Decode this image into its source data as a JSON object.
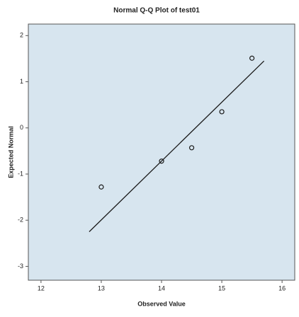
{
  "chart_data": {
    "type": "qq",
    "title": "Normal Q-Q Plot of test01",
    "xlabel": "Observed Value",
    "ylabel": "Expected Normal",
    "x": [
      13,
      14,
      14.5,
      15,
      15.5
    ],
    "values": [
      -1.28,
      -0.72,
      -0.43,
      0.35,
      1.51
    ],
    "reference_line": {
      "x": [
        12.8,
        15.7
      ],
      "y": [
        -2.25,
        1.45
      ]
    },
    "xlim": [
      11.79,
      16.21
    ],
    "xticks": [
      12,
      13,
      14,
      15,
      16
    ],
    "ylim": [
      -3.3,
      2.25
    ],
    "yticks": [
      -3,
      -2,
      -1,
      0,
      1,
      2
    ],
    "color": "#1a1a1a",
    "plot_background": "#d7e5ef"
  }
}
